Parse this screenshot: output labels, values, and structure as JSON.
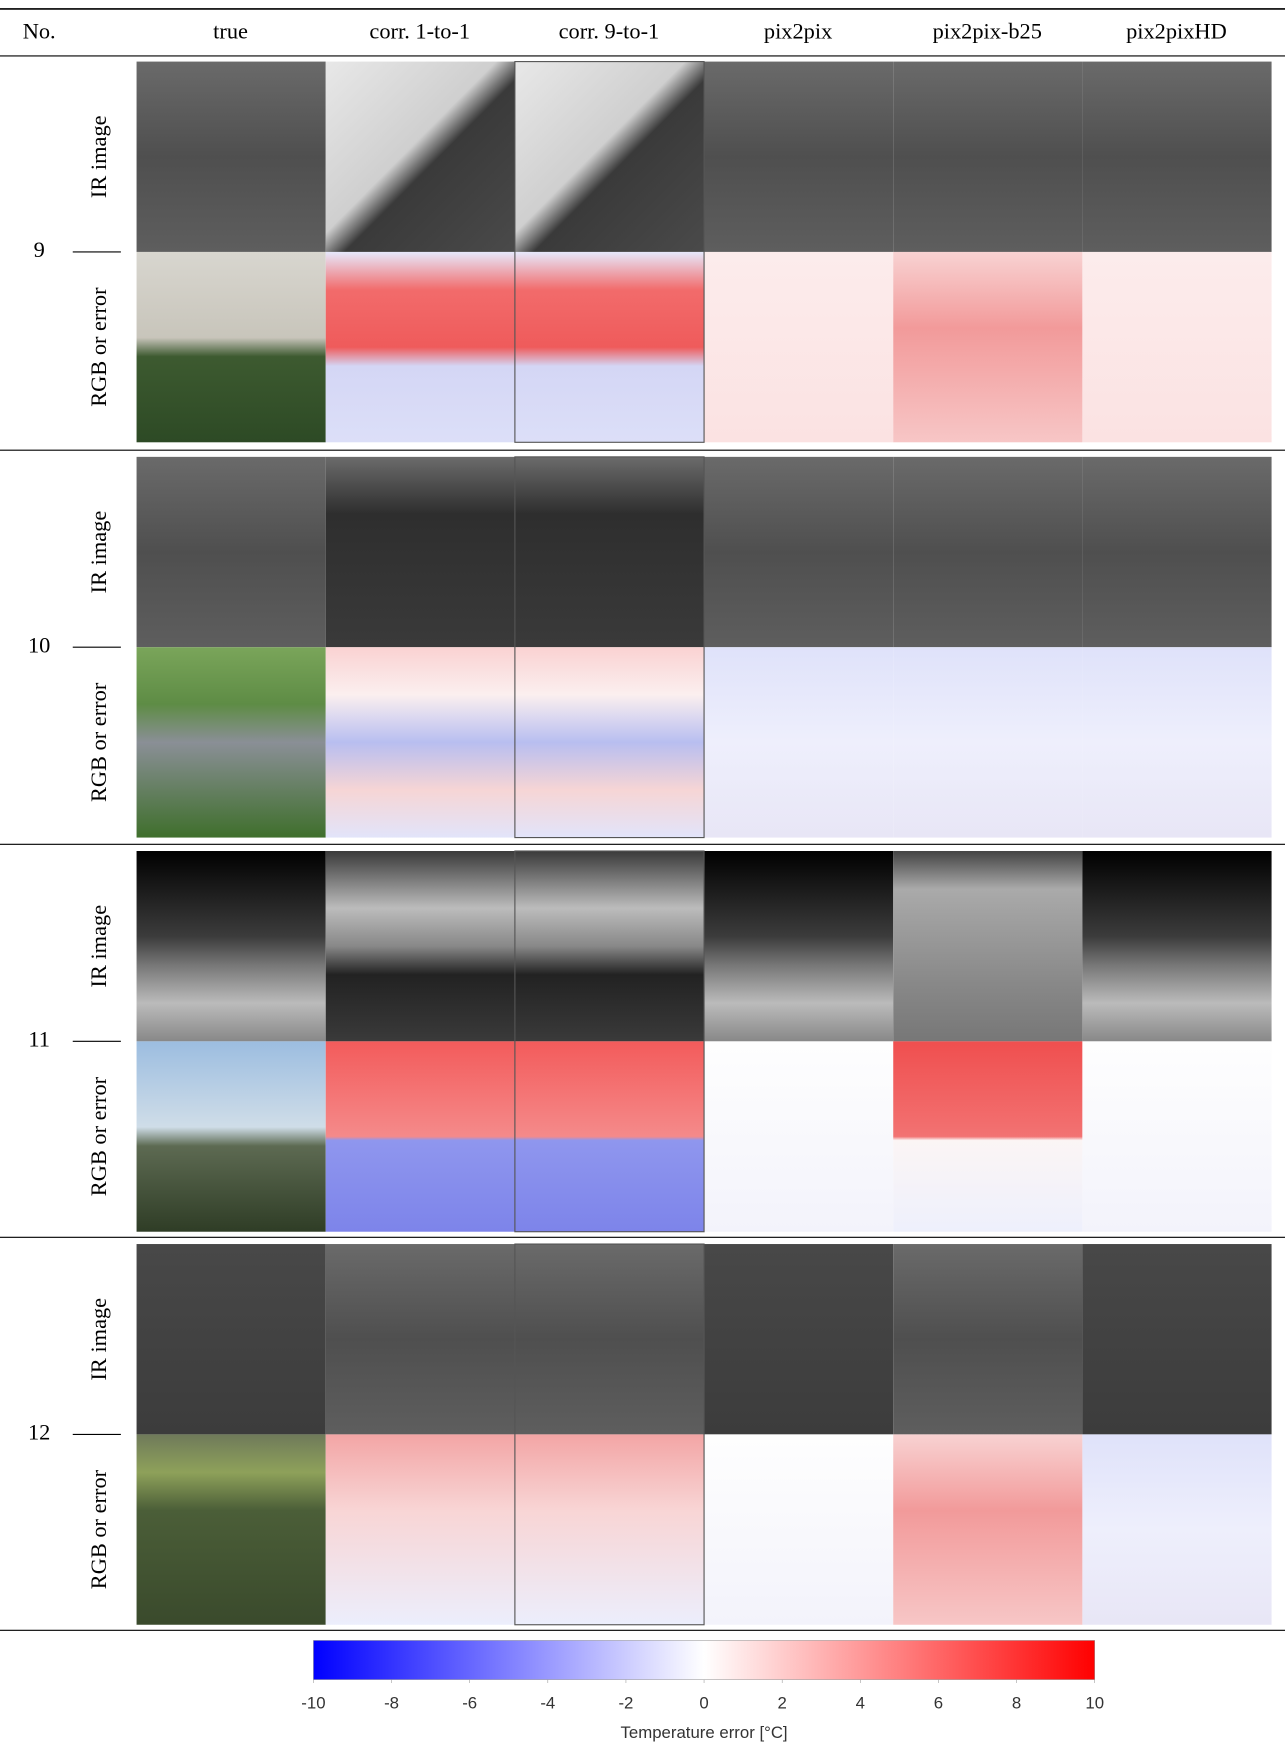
{
  "table": {
    "header": [
      "No.",
      "true",
      "corr. 1-to-1",
      "corr. 9-to-1",
      "pix2pix",
      "pix2pix-b25",
      "pix2pixHD"
    ],
    "rows": [
      {
        "no": "9",
        "labels": [
          "IR image",
          "RGB or error"
        ]
      },
      {
        "no": "10",
        "labels": [
          "IR image",
          "RGB or error"
        ]
      },
      {
        "no": "11",
        "labels": [
          "IR image",
          "RGB or error"
        ]
      },
      {
        "no": "12",
        "labels": [
          "IR image",
          "RGB or error"
        ]
      }
    ]
  },
  "colorbar": {
    "label": "Temperature error [°C]",
    "lim": [
      -10,
      10
    ],
    "ticks": [
      -10,
      -8,
      -6,
      -4,
      -2,
      0,
      2,
      4,
      6,
      8,
      10
    ]
  }
}
